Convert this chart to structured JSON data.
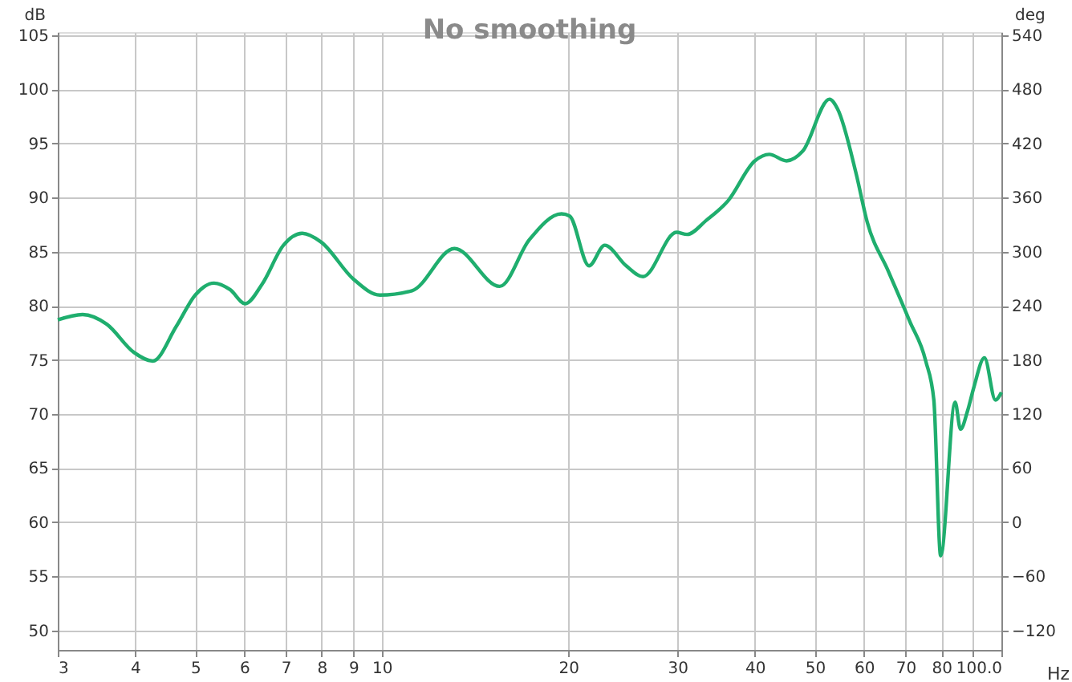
{
  "chart_data": {
    "type": "line",
    "title": "No smoothing",
    "xlabel": "Hz",
    "ylabel": "dB",
    "y2label": "deg",
    "log": "x",
    "grid": true,
    "line_style": "solid",
    "marker": "none",
    "xlim": [
      3,
      100
    ],
    "xticks": [
      3,
      4,
      5,
      6,
      7,
      8,
      9,
      10,
      20,
      30,
      40,
      50,
      60,
      70,
      80,
      {
        "value": 90,
        "label": null
      },
      {
        "value": 100,
        "label": "100.0"
      }
    ],
    "ylim": [
      48.2,
      105.3
    ],
    "yticks": [
      50,
      55,
      60,
      65,
      70,
      75,
      80,
      85,
      90,
      95,
      100,
      105
    ],
    "y2lim": [
      -141.6,
      543.6
    ],
    "y2ticks": [
      -120,
      -60,
      0,
      60,
      120,
      180,
      240,
      300,
      360,
      420,
      480,
      540
    ],
    "series": [
      {
        "color": "#1fae6e",
        "x": [
          3.0,
          3.29,
          3.6,
          3.98,
          4.27,
          4.66,
          5.0,
          5.36,
          5.69,
          6.02,
          6.41,
          6.94,
          7.44,
          7.98,
          8.99,
          9.93,
          11.19,
          13.1,
          15.5,
          17.3,
          19.5,
          20.1,
          21.6,
          22.9,
          24.8,
          26.4,
          29.9,
          31.1,
          33.4,
          36.2,
          40.0,
          42.2,
          45.0,
          47.8,
          52.8,
          54.4,
          58.3,
          60.7,
          65.7,
          71.1,
          75.5,
          77.8,
          79.8,
          84.2,
          85.9,
          88.2,
          90.3,
          93.9,
          97.8,
          100.0
        ],
        "values": [
          78.7,
          79.2,
          78.3,
          75.7,
          74.9,
          78.1,
          81.0,
          82.1,
          81.5,
          80.2,
          82.0,
          85.6,
          86.7,
          85.9,
          82.5,
          81.0,
          81.4,
          85.3,
          81.8,
          86.1,
          88.5,
          88.3,
          83.7,
          85.6,
          83.7,
          82.7,
          86.8,
          86.6,
          87.9,
          89.7,
          93.4,
          94.0,
          93.4,
          94.3,
          99.1,
          98.2,
          92.2,
          87.8,
          83.2,
          78.6,
          74.9,
          71.3,
          56.9,
          71.1,
          68.6,
          70.3,
          72.5,
          75.2,
          71.3,
          72.0
        ]
      }
    ]
  }
}
